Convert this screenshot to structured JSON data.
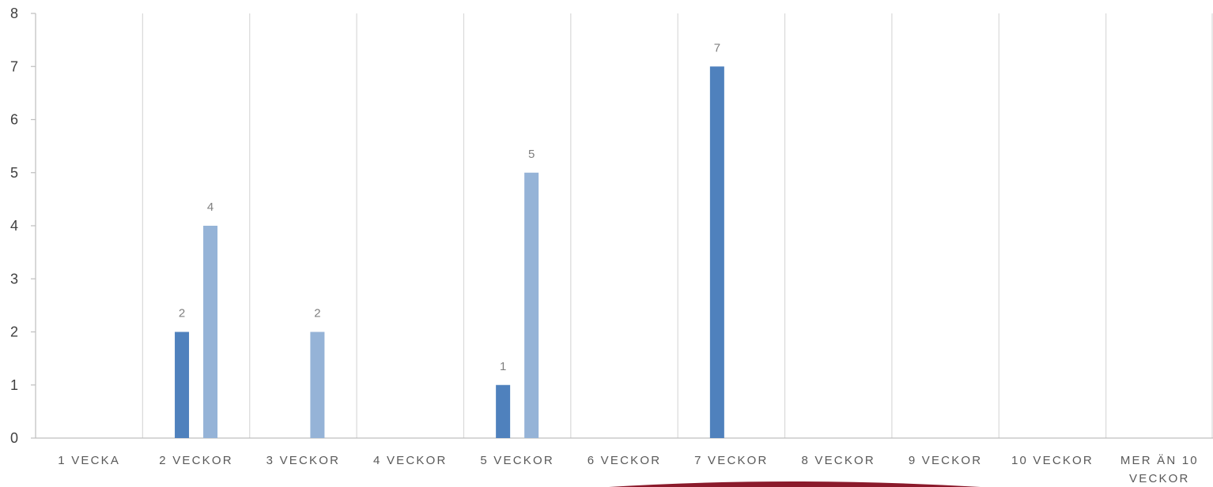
{
  "chart_data": {
    "type": "bar",
    "title": "",
    "xlabel": "",
    "ylabel": "",
    "ylim": [
      0,
      8
    ],
    "yticks": [
      0,
      1,
      2,
      3,
      4,
      5,
      6,
      7,
      8
    ],
    "grid": "vertical category separators",
    "legend": "none",
    "categories": [
      [
        "1 VECKA"
      ],
      [
        "2 VECKOR"
      ],
      [
        "3 VECKOR"
      ],
      [
        "4 VECKOR"
      ],
      [
        "5 VECKOR"
      ],
      [
        "6 VECKOR"
      ],
      [
        "7 VECKOR"
      ],
      [
        "8 VECKOR"
      ],
      [
        "9 VECKOR"
      ],
      [
        "10 VECKOR"
      ],
      [
        "MER ÄN 10",
        "VECKOR"
      ]
    ],
    "series": [
      {
        "color": "#4f81bd",
        "values": [
          null,
          2,
          null,
          null,
          1,
          null,
          7,
          null,
          null,
          null,
          null
        ]
      },
      {
        "color": "#95b3d7",
        "values": [
          null,
          4,
          2,
          null,
          5,
          null,
          null,
          null,
          null,
          null,
          null
        ]
      }
    ],
    "colors": {
      "axis": "#bfbfbf",
      "grid": "#d9d9d9",
      "decoration": "#8b1a2b"
    }
  }
}
